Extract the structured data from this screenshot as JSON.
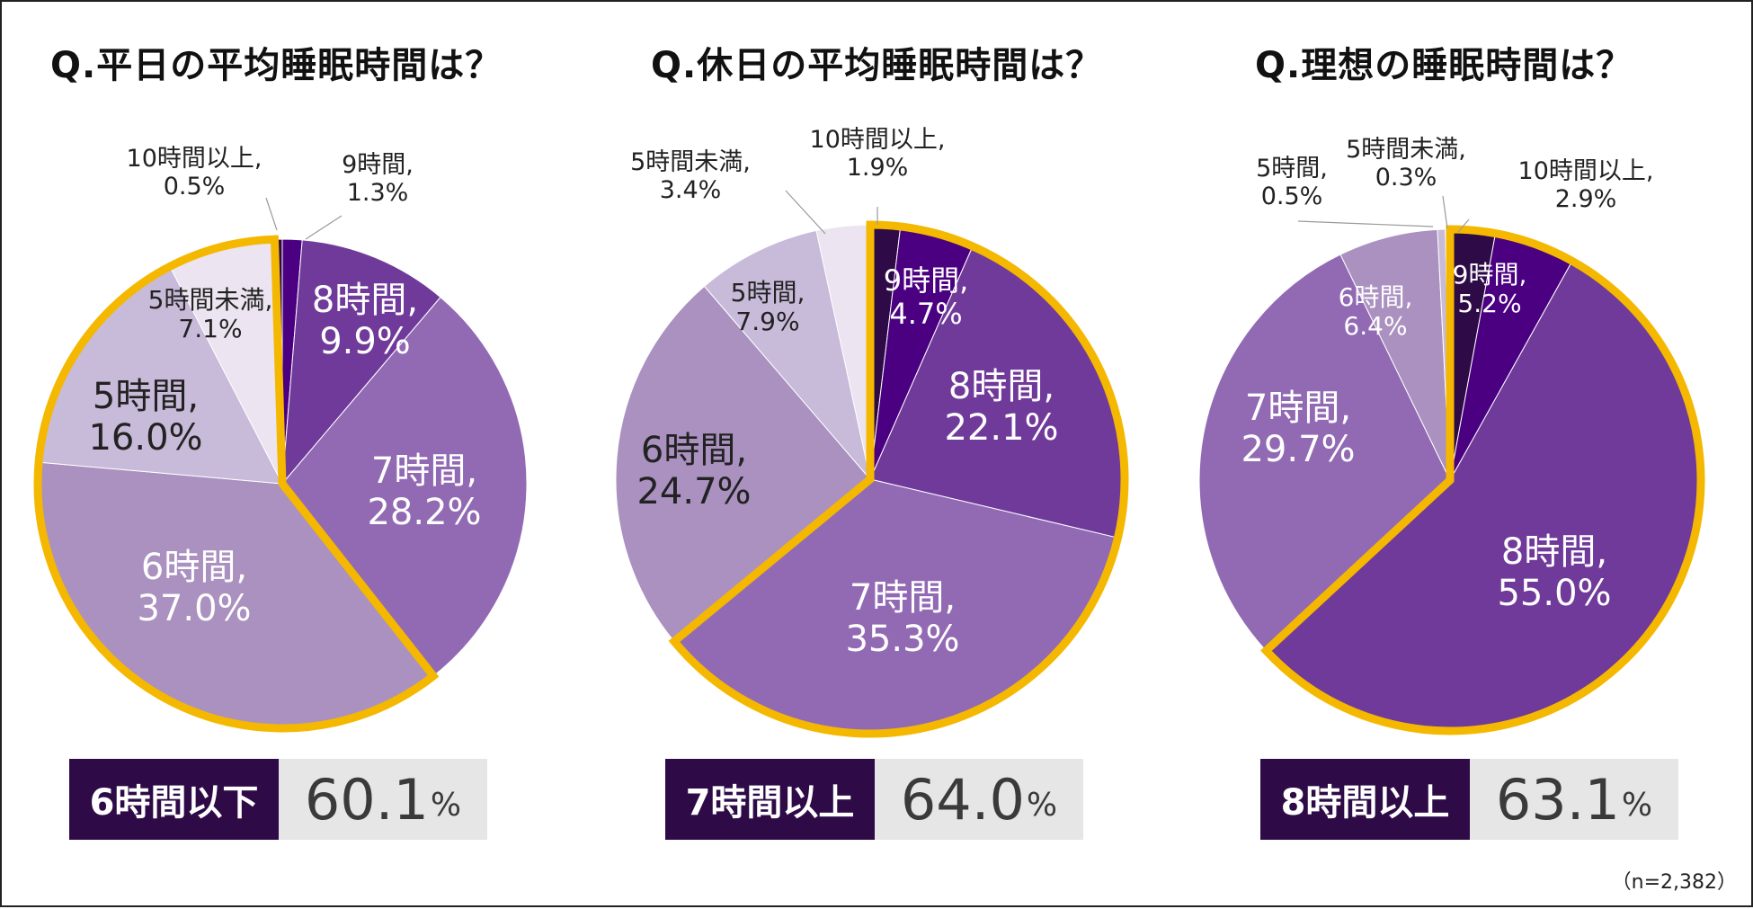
{
  "chart_data": [
    {
      "type": "pie",
      "title": "Q.平日の平均睡眠時間は？",
      "slices": [
        {
          "label": "9時間",
          "value": 1.3,
          "text": "9時間,\n1.3%",
          "color": "#4b0082"
        },
        {
          "label": "8時間",
          "value": 9.9,
          "text": "8時間,\n9.9%",
          "color": "#703a9b"
        },
        {
          "label": "7時間",
          "value": 28.2,
          "text": "7時間,\n28.2%",
          "color": "#926ab4"
        },
        {
          "label": "6時間",
          "value": 37.0,
          "text": "6時間,\n37.0%",
          "color": "#aa91c0"
        },
        {
          "label": "5時間",
          "value": 16.0,
          "text": "5時間,\n16.0%",
          "color": "#c8bad9"
        },
        {
          "label": "5時間未満",
          "value": 7.1,
          "text": "5時間未満,\n7.1%",
          "color": "#ece4f0"
        },
        {
          "label": "10時間以上",
          "value": 0.5,
          "text": "10時間以上,\n0.5%",
          "color": "#2e0b47"
        }
      ],
      "highlighted_slices": [
        "6時間",
        "5時間",
        "5時間未満"
      ],
      "summary": {
        "label": "6時間以下",
        "value": "60.1",
        "unit": "%"
      }
    },
    {
      "type": "pie",
      "title": "Q.休日の平均睡眠時間は？",
      "slices": [
        {
          "label": "10時間以上",
          "value": 1.9,
          "text": "10時間以上,\n1.9%",
          "color": "#2e0b47"
        },
        {
          "label": "9時間",
          "value": 4.7,
          "text": "9時間,\n4.7%",
          "color": "#4b0082"
        },
        {
          "label": "8時間",
          "value": 22.1,
          "text": "8時間,\n22.1%",
          "color": "#703a9b"
        },
        {
          "label": "7時間",
          "value": 35.3,
          "text": "7時間,\n35.3%",
          "color": "#926ab4"
        },
        {
          "label": "6時間",
          "value": 24.7,
          "text": "6時間,\n24.7%",
          "color": "#aa91c0"
        },
        {
          "label": "5時間",
          "value": 7.9,
          "text": "5時間,\n7.9%",
          "color": "#c8bad9"
        },
        {
          "label": "5時間未満",
          "value": 3.4,
          "text": "5時間未満,\n3.4%",
          "color": "#ece4f0"
        }
      ],
      "highlighted_slices": [
        "10時間以上",
        "9時間",
        "8時間",
        "7時間"
      ],
      "summary": {
        "label": "7時間以上",
        "value": "64.0",
        "unit": "%"
      }
    },
    {
      "type": "pie",
      "title": "Q.理想の睡眠時間は？",
      "slices": [
        {
          "label": "10時間以上",
          "value": 2.9,
          "text": "10時間以上,\n2.9%",
          "color": "#2e0b47"
        },
        {
          "label": "9時間",
          "value": 5.2,
          "text": "9時間,\n5.2%",
          "color": "#4b0082"
        },
        {
          "label": "8時間",
          "value": 55.0,
          "text": "8時間,\n55.0%",
          "color": "#703a9b"
        },
        {
          "label": "7時間",
          "value": 29.7,
          "text": "7時間,\n29.7%",
          "color": "#926ab4"
        },
        {
          "label": "6時間",
          "value": 6.4,
          "text": "6時間,\n6.4%",
          "color": "#aa91c0"
        },
        {
          "label": "5時間",
          "value": 0.5,
          "text": "5時間,\n0.5%",
          "color": "#c8bad9"
        },
        {
          "label": "5時間未満",
          "value": 0.3,
          "text": "5時間未満,\n0.3%",
          "color": "#ece4f0"
        }
      ],
      "highlighted_slices": [
        "10時間以上",
        "9時間",
        "8時間"
      ],
      "summary": {
        "label": "8時間以上",
        "value": "63.1",
        "unit": "%"
      }
    }
  ],
  "highlight_color": "#f5b800",
  "sample_size": "（n=2,382）"
}
